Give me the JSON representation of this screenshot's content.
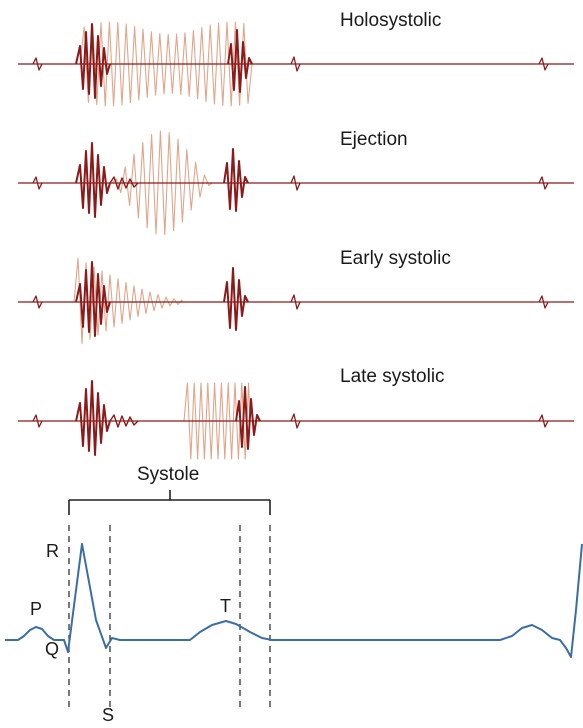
{
  "murmurs": [
    {
      "label": "Holosystolic"
    },
    {
      "label": "Ejection"
    },
    {
      "label": "Early systolic"
    },
    {
      "label": "Late systolic"
    }
  ],
  "systole_label": "Systole",
  "ecg_labels": {
    "p": "P",
    "q": "Q",
    "r": "R",
    "s": "S",
    "t": "T"
  },
  "colors": {
    "heart_sound": "#8b1a1a",
    "murmur": "#e0a58a",
    "ecg": "#3a6ea5",
    "annotation": "#222222"
  }
}
